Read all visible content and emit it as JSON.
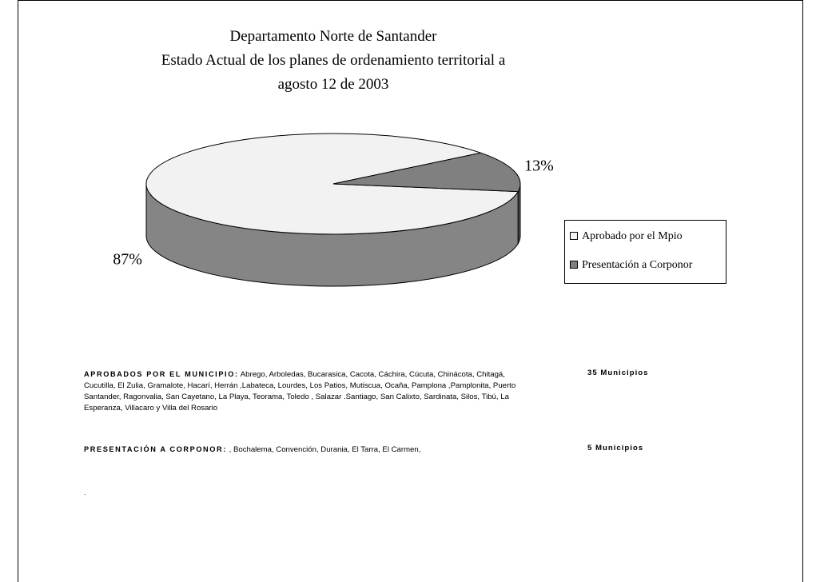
{
  "chart_data": {
    "type": "pie",
    "title": [
      "Departamento Norte de Santander",
      "Estado Actual de los planes de ordenamiento territorial a",
      "agosto 12 de 2003"
    ],
    "categories": [
      "Aprobado por el Mpio",
      "Presentación a Corponor"
    ],
    "values": [
      87,
      13
    ],
    "value_labels": [
      "87%",
      "13%"
    ],
    "colors": [
      "#f2f2f2",
      "#808080"
    ],
    "legend": "right"
  },
  "notes": [
    {
      "label": "APROBADOS POR EL MUNICIPIO:",
      "text": "Abrego, Arboledas, Bucarasica, Cacota, Cáchira, Cúcuta, Chinácota, Chitagá, Cucutilla, El Zulia, Gramalote, Hacarí, Herrán ,Labateca, Lourdes, Los Patios, Mutiscua, Ocaña, Pamplona ,Pamplonita, Puerto Santander, Ragonvalia, San Cayetano, La Playa, Teorama, Toledo , Salazar .Santiago, San Calixto, Sardinata, Silos, Tibú, La Esperanza, Villacaro y Villa del Rosario",
      "count": "35 Municipios"
    },
    {
      "label": "PRESENTACIÓN A CORPONOR:",
      "text": ", Bochalema, Convención, Durania, El Tarra, El Carmen,",
      "count": "5 Municipios"
    }
  ],
  "footnote": "."
}
